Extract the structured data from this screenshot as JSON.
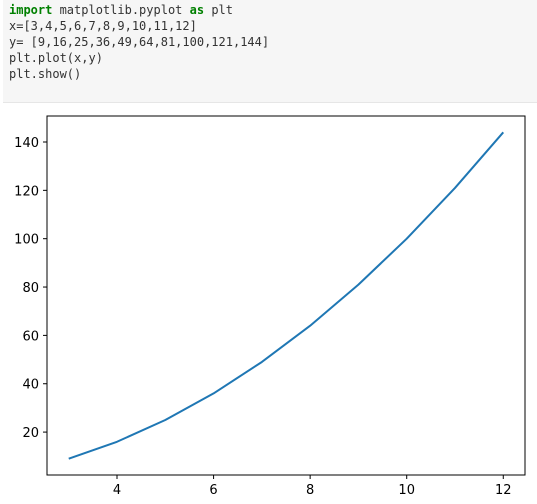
{
  "code_cell": {
    "lines": [
      {
        "tokens": [
          {
            "t": "import",
            "c": "kw"
          },
          {
            "t": " matplotlib.pyplot ",
            "c": "fn"
          },
          {
            "t": "as",
            "c": "kw"
          },
          {
            "t": " plt",
            "c": "fn"
          }
        ]
      },
      {
        "tokens": [
          {
            "t": "x=[3,4,5,6,7,8,9,10,11,12]",
            "c": "fn"
          }
        ]
      },
      {
        "tokens": [
          {
            "t": "y= [9,16,25,36,49,64,81,100,121,144]",
            "c": "fn"
          }
        ]
      },
      {
        "tokens": [
          {
            "t": "plt.plot(x,y)",
            "c": "fn"
          }
        ]
      },
      {
        "tokens": [
          {
            "t": "plt.show()",
            "c": "fn"
          }
        ]
      }
    ]
  },
  "colors": {
    "line": "#1f77b4",
    "axes": "#000000",
    "code_bg": "#f6f6f6"
  },
  "chart_data": {
    "type": "line",
    "title": "",
    "xlabel": "",
    "ylabel": "",
    "x": [
      3,
      4,
      5,
      6,
      7,
      8,
      9,
      10,
      11,
      12
    ],
    "series": [
      {
        "values": [
          9,
          16,
          25,
          36,
          49,
          64,
          81,
          100,
          121,
          144
        ]
      }
    ],
    "xlim": [
      2.55,
      12.45
    ],
    "ylim": [
      2.25,
      150.75
    ],
    "xticks": [
      "4",
      "6",
      "8",
      "10",
      "12"
    ],
    "yticks": [
      "20",
      "40",
      "60",
      "80",
      "100",
      "120",
      "140"
    ],
    "grid": false,
    "legend": "none"
  }
}
